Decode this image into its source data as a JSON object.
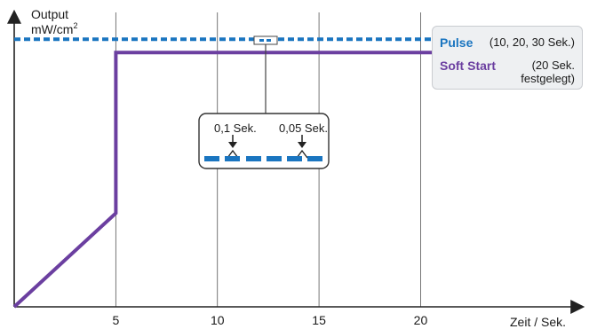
{
  "chart_data": {
    "type": "line",
    "ylabel_line1": "Output",
    "ylabel_line2": "mW/cm",
    "ylabel_sup": "2",
    "xlabel": "Zeit / Sek.",
    "x_ticks": [
      5,
      10,
      15,
      20
    ],
    "xlim": [
      0,
      27.5
    ],
    "ylim": [
      0,
      1.1
    ],
    "grid": true,
    "series": [
      {
        "name": "Pulse",
        "style": "dotted",
        "color": "#1a75c0",
        "x": [
          0,
          27.5
        ],
        "y": [
          1.0,
          1.0
        ]
      },
      {
        "name": "Soft Start",
        "style": "solid",
        "color": "#6b3fa0",
        "x": [
          0,
          5,
          5,
          20,
          27.5
        ],
        "y": [
          0,
          0.35,
          0.95,
          0.95,
          0.95
        ]
      }
    ]
  },
  "legend": {
    "pulse_name": "Pulse",
    "pulse_detail": "(10, 20, 30 Sek.)",
    "soft_name": "Soft Start",
    "soft_detail_line1": "(20 Sek.",
    "soft_detail_line2": "festgelegt)"
  },
  "callout": {
    "label_left": "0,1 Sek.",
    "label_right": "0,05 Sek."
  },
  "colors": {
    "pulse": "#1a75c0",
    "soft_start": "#6b3fa0",
    "grid": "#555555",
    "axis": "#222222"
  }
}
